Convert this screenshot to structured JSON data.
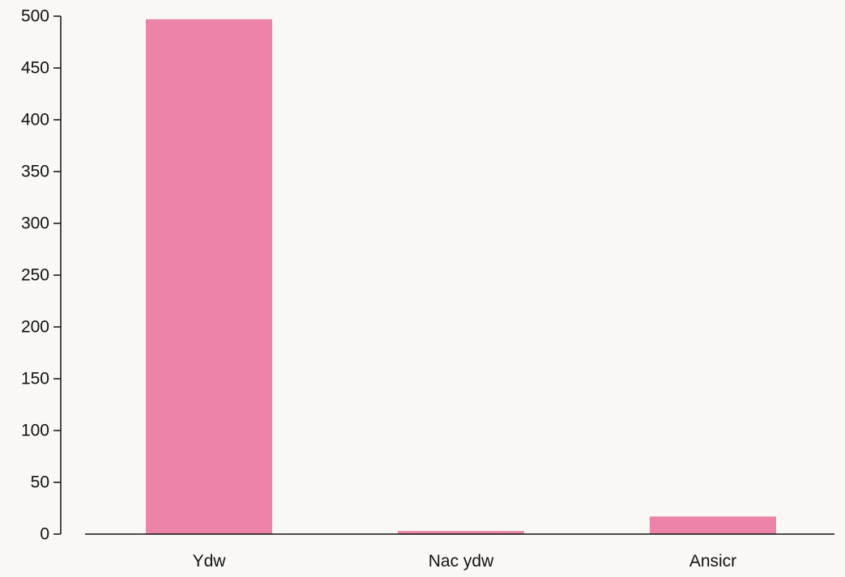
{
  "chart_data": {
    "type": "bar",
    "categories": [
      "Ydw",
      "Nac ydw",
      "Ansicr"
    ],
    "values": [
      497,
      3,
      17
    ],
    "title": "",
    "xlabel": "",
    "ylabel": "",
    "ylim": [
      0,
      500
    ],
    "yticks": [
      0,
      50,
      100,
      150,
      200,
      250,
      300,
      350,
      400,
      450,
      500
    ],
    "grid": false,
    "legend": "none",
    "bar_color": "#eb84a8",
    "axis_color": "#111111",
    "background": "#f9f8f4"
  }
}
